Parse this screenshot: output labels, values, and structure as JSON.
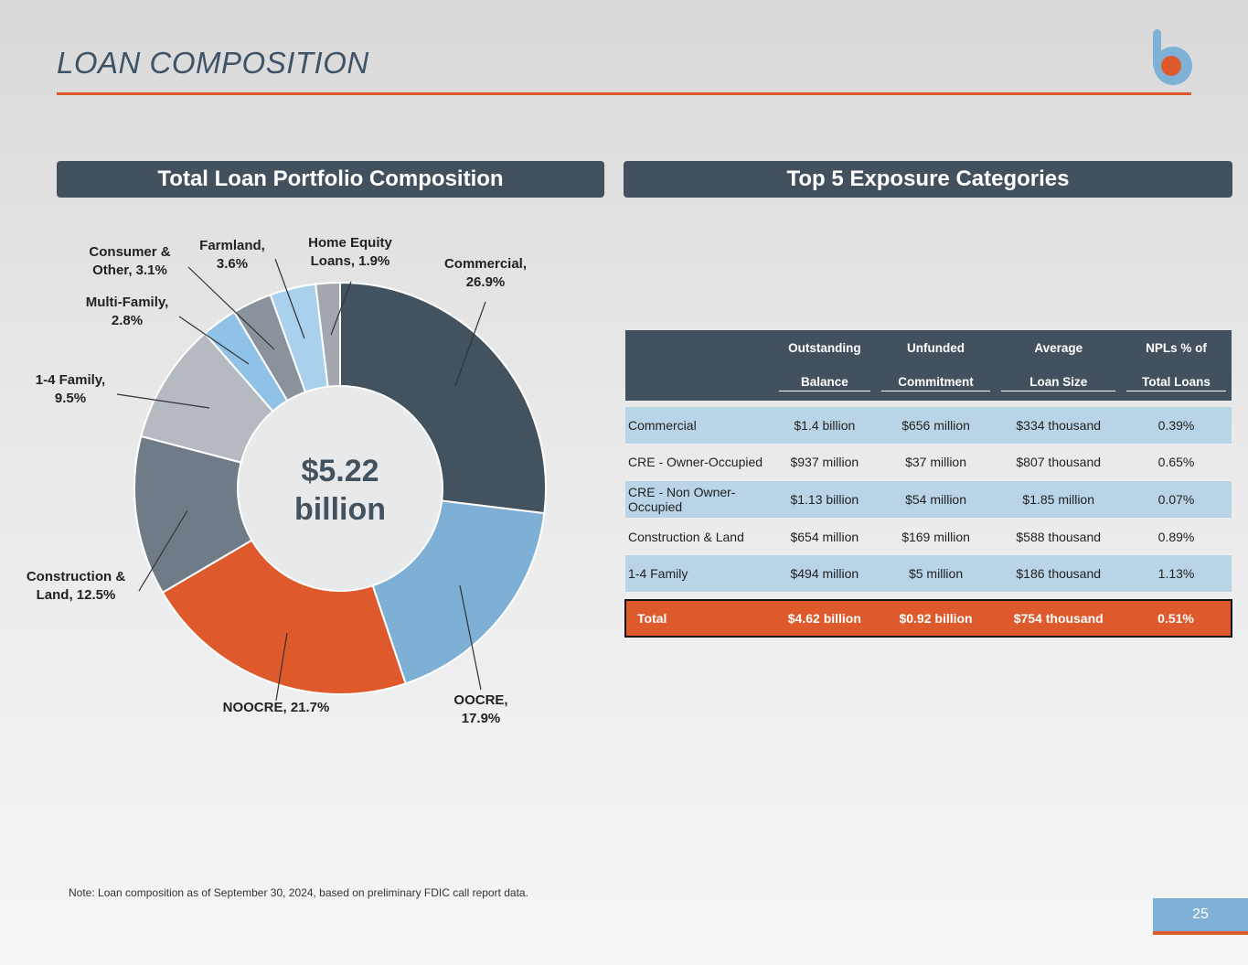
{
  "page": {
    "title": "LOAN COMPOSITION",
    "page_number": "25",
    "footnote": "Note: Loan composition as of September 30, 2024, based on preliminary FDIC call report data.",
    "accent_color": "#de5a2c",
    "header_color": "#43515e",
    "logo": "b-logo-icon"
  },
  "left_panel": {
    "title": "Total Loan Portfolio Composition"
  },
  "right_panel": {
    "title": "Top 5 Exposure Categories"
  },
  "chart_data": {
    "type": "pie",
    "style": "donut",
    "center_label": [
      "$5.22",
      "billion"
    ],
    "slices": [
      {
        "label": [
          "Commercial,",
          "26.9%"
        ],
        "value": 26.9,
        "color": "#43525f"
      },
      {
        "label": [
          "OOCRE,",
          "17.9%"
        ],
        "value": 17.9,
        "color": "#7eb0d6"
      },
      {
        "label": [
          "NOOCRE, 21.7%"
        ],
        "value": 21.7,
        "color": "#de5a2c"
      },
      {
        "label": [
          "Construction &",
          "Land, 12.5%"
        ],
        "value": 12.5,
        "color": "#707b88"
      },
      {
        "label": [
          "1-4 Family,",
          "9.5%"
        ],
        "value": 9.5,
        "color": "#b5bac1"
      },
      {
        "label": [
          "Multi-Family,",
          "2.8%"
        ],
        "value": 2.8,
        "color": "#8fc2e6"
      },
      {
        "label": [
          "Consumer &",
          "Other, 3.1%"
        ],
        "value": 3.1,
        "color": "#8a939c"
      },
      {
        "label": [
          "Farmland,",
          "3.6%"
        ],
        "value": 3.6,
        "color": "#a9d0ed"
      },
      {
        "label": [
          "Home Equity",
          "Loans, 1.9%"
        ],
        "value": 1.9,
        "color": "#a4a8ae"
      }
    ]
  },
  "table": {
    "headers_top": [
      "Outstanding",
      "Unfunded",
      "Average",
      "NPLs % of"
    ],
    "headers_bottom": [
      "Balance",
      "Commitment",
      "Loan Size",
      "Total Loans"
    ],
    "rows": [
      {
        "name": "Commercial",
        "balance": "$1.4 billion",
        "unfunded": "$656 million",
        "avg": "$334 thousand",
        "npl": "0.39%"
      },
      {
        "name": "CRE - Owner-Occupied",
        "balance": "$937 million",
        "unfunded": "$37 million",
        "avg": "$807 thousand",
        "npl": "0.65%"
      },
      {
        "name": "CRE - Non Owner-Occupied",
        "balance": "$1.13 billion",
        "unfunded": "$54 million",
        "avg": "$1.85 million",
        "npl": "0.07%"
      },
      {
        "name": "Construction & Land",
        "balance": "$654 million",
        "unfunded": "$169 million",
        "avg": "$588 thousand",
        "npl": "0.89%"
      },
      {
        "name": "1-4 Family",
        "balance": "$494 million",
        "unfunded": "$5 million",
        "avg": "$186 thousand",
        "npl": "1.13%"
      }
    ],
    "total": {
      "name": "Total",
      "balance": "$4.62 billion",
      "unfunded": "$0.92 billion",
      "avg": "$754 thousand",
      "npl": "0.51%"
    }
  }
}
